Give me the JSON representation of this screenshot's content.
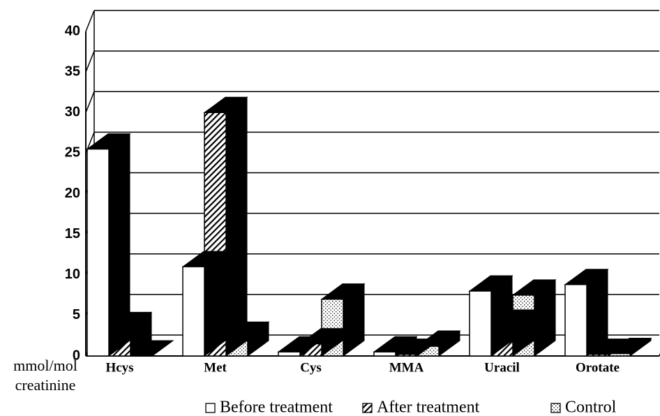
{
  "chart_data": {
    "type": "bar3d",
    "y_label": "mmol/mol creatinine",
    "categories": [
      "Hcys",
      "Met",
      "Cys",
      "MMA",
      "Uracil",
      "Orotate"
    ],
    "series": [
      {
        "name": "Before treatment",
        "color": "#ffffff",
        "values": [
          25.5,
          11,
          0.5,
          0.5,
          8,
          8.8
        ]
      },
      {
        "name": "After treatment",
        "color": "#000000",
        "values": [
          3.5,
          30,
          1.5,
          0.2,
          3.8,
          0.2
        ]
      },
      {
        "name": "Control",
        "color": "#000000",
        "values": [
          0,
          2.3,
          7,
          1.2,
          7.5,
          0.3
        ]
      }
    ],
    "ylim": [
      0,
      40
    ],
    "yticks": [
      0,
      5,
      10,
      15,
      20,
      25,
      30,
      35,
      40
    ],
    "grid": true
  }
}
